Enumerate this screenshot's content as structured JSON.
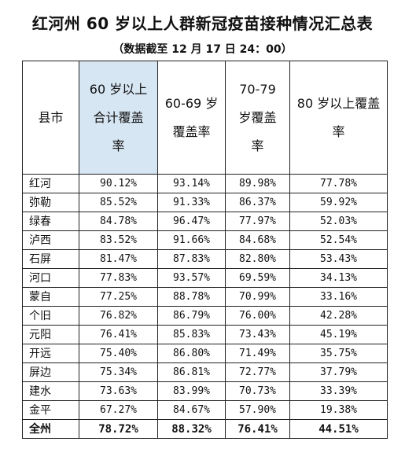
{
  "title": "红河州 60 岁以上人群新冠疫苗接种情况汇总表",
  "subtitle": "（数据截至 12 月 17 日 24：00）",
  "headers": {
    "county": "县市",
    "total": [
      "60 岁以上",
      "合计覆盖",
      "率"
    ],
    "age60": [
      "60-69 岁",
      "覆盖率"
    ],
    "age70": [
      "70-79",
      "岁覆盖",
      "率"
    ],
    "age80": [
      "80 岁以上覆盖",
      "率"
    ]
  },
  "rows": [
    {
      "county": "红河",
      "total": "90.12%",
      "age60": "93.14%",
      "age70": "89.98%",
      "age80": "77.78%"
    },
    {
      "county": "弥勒",
      "total": "85.52%",
      "age60": "91.33%",
      "age70": "86.37%",
      "age80": "59.92%"
    },
    {
      "county": "绿春",
      "total": "84.78%",
      "age60": "96.47%",
      "age70": "77.97%",
      "age80": "52.03%"
    },
    {
      "county": "泸西",
      "total": "83.52%",
      "age60": "91.66%",
      "age70": "84.68%",
      "age80": "52.54%"
    },
    {
      "county": "石屏",
      "total": "81.47%",
      "age60": "87.83%",
      "age70": "82.80%",
      "age80": "53.43%"
    },
    {
      "county": "河口",
      "total": "77.83%",
      "age60": "93.57%",
      "age70": "69.59%",
      "age80": "34.13%"
    },
    {
      "county": "蒙自",
      "total": "77.25%",
      "age60": "88.78%",
      "age70": "70.99%",
      "age80": "33.16%"
    },
    {
      "county": "个旧",
      "total": "76.82%",
      "age60": "86.79%",
      "age70": "76.00%",
      "age80": "42.28%"
    },
    {
      "county": "元阳",
      "total": "76.41%",
      "age60": "85.83%",
      "age70": "73.43%",
      "age80": "45.19%"
    },
    {
      "county": "开远",
      "total": "75.40%",
      "age60": "86.80%",
      "age70": "71.49%",
      "age80": "35.75%"
    },
    {
      "county": "屏边",
      "total": "75.34%",
      "age60": "86.81%",
      "age70": "72.77%",
      "age80": "37.79%"
    },
    {
      "county": "建水",
      "total": "73.63%",
      "age60": "83.99%",
      "age70": "70.73%",
      "age80": "33.39%"
    },
    {
      "county": "金平",
      "total": "67.27%",
      "age60": "84.67%",
      "age70": "57.90%",
      "age80": "19.38%"
    }
  ],
  "total_row": {
    "county": "全州",
    "total": "78.72%",
    "age60": "88.32%",
    "age70": "76.41%",
    "age80": "44.51%"
  },
  "colors": {
    "header_highlight": "#d7e6f3",
    "border": "#222222"
  }
}
